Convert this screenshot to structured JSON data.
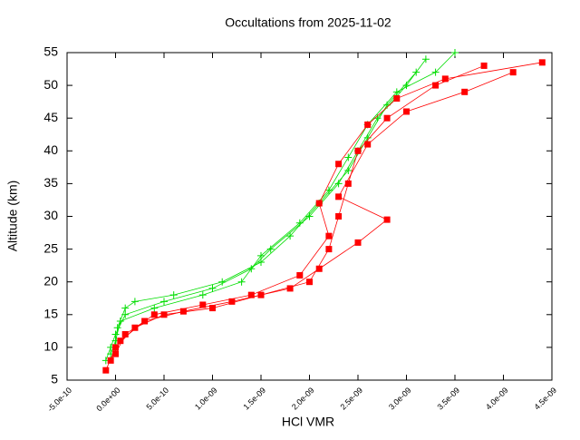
{
  "chart_data": {
    "type": "line",
    "title": "Occultations from 2025-11-02",
    "x_label": "HCl VMR",
    "y_label": "Altitude (km)",
    "xlim": [
      -5e-10,
      4.5e-09
    ],
    "xticks": [
      {
        "value": -5e-10,
        "label": "-5.0e-10"
      },
      {
        "value": 0,
        "label": "0.0e+00"
      },
      {
        "value": 5e-10,
        "label": "5.0e-10"
      },
      {
        "value": 1e-09,
        "label": "1.0e-09"
      },
      {
        "value": 1.5e-09,
        "label": "1.5e-09"
      },
      {
        "value": 2e-09,
        "label": "2.0e-09"
      },
      {
        "value": 2.5e-09,
        "label": "2.5e-09"
      },
      {
        "value": 3e-09,
        "label": "3.0e-09"
      },
      {
        "value": 3.5e-09,
        "label": "3.5e-09"
      },
      {
        "value": 4e-09,
        "label": "4.0e-09"
      },
      {
        "value": 4.5e-09,
        "label": "4.5e-09"
      }
    ],
    "ylim": [
      5,
      55
    ],
    "yticks": [
      5,
      10,
      15,
      20,
      25,
      30,
      35,
      40,
      45,
      50,
      55
    ],
    "series": [
      {
        "color": "#00dd00",
        "marker": "plus",
        "x": [
          -1e-10,
          -5e-11,
          0,
          1e-10,
          5e-10,
          1e-09,
          1.4e-09,
          1.6e-09,
          2e-09,
          2.3e-09,
          2.5e-09,
          2.7e-09,
          3e-09,
          3.2e-09
        ],
        "values": [
          8,
          10,
          12,
          15,
          17,
          19,
          22,
          25,
          30,
          35,
          40,
          45,
          50,
          54
        ]
      },
      {
        "color": "#00dd00",
        "marker": "plus",
        "x": [
          -5e-11,
          0,
          5e-11,
          4e-10,
          9e-10,
          1.3e-09,
          1.5e-09,
          1.9e-09,
          2.2e-09,
          2.4e-09,
          2.6e-09,
          2.9e-09,
          3.3e-09,
          3.5e-09
        ],
        "values": [
          9,
          11,
          14,
          16,
          18,
          20,
          24,
          29,
          34,
          39,
          44,
          49,
          52,
          55
        ]
      },
      {
        "color": "#00dd00",
        "marker": "plus",
        "x": [
          0,
          2e-11,
          1e-10,
          2e-10,
          6e-10,
          1.1e-09,
          1.5e-09,
          1.8e-09,
          2.1e-09,
          2.4e-09,
          2.6e-09,
          2.8e-09,
          3.1e-09
        ],
        "values": [
          10,
          13,
          16,
          17,
          18,
          20,
          23,
          27,
          32,
          37,
          42,
          47,
          52
        ]
      },
      {
        "color": "#ff0000",
        "marker": "square",
        "x": [
          -1e-10,
          0,
          2e-10,
          5e-10,
          1e-09,
          1.5e-09,
          2e-09,
          2.2e-09,
          2.3e-09,
          2.4e-09,
          2.5e-09,
          2.8e-09,
          3.3e-09,
          3.8e-09
        ],
        "values": [
          6.5,
          10,
          13,
          15,
          16,
          18,
          20,
          25,
          30,
          35,
          40,
          45,
          50,
          53
        ]
      },
      {
        "color": "#ff0000",
        "marker": "square",
        "x": [
          -5e-11,
          5e-11,
          3e-10,
          7e-10,
          1.2e-09,
          1.8e-09,
          2.1e-09,
          2.5e-09,
          2.8e-09,
          2.3e-09,
          2.6e-09,
          3e-09,
          3.6e-09,
          4.1e-09
        ],
        "values": [
          8,
          11,
          14,
          15.5,
          17,
          19,
          22,
          26,
          29.5,
          33,
          41,
          46,
          49,
          52
        ]
      },
      {
        "color": "#ff0000",
        "marker": "square",
        "x": [
          0,
          1e-10,
          4e-10,
          9e-10,
          1.4e-09,
          1.9e-09,
          2.2e-09,
          2.1e-09,
          2.3e-09,
          2.6e-09,
          2.9e-09,
          3.4e-09,
          4.4e-09
        ],
        "values": [
          9,
          12,
          15,
          16.5,
          18,
          21,
          27,
          32,
          38,
          44,
          48,
          51,
          53.5
        ]
      }
    ]
  }
}
